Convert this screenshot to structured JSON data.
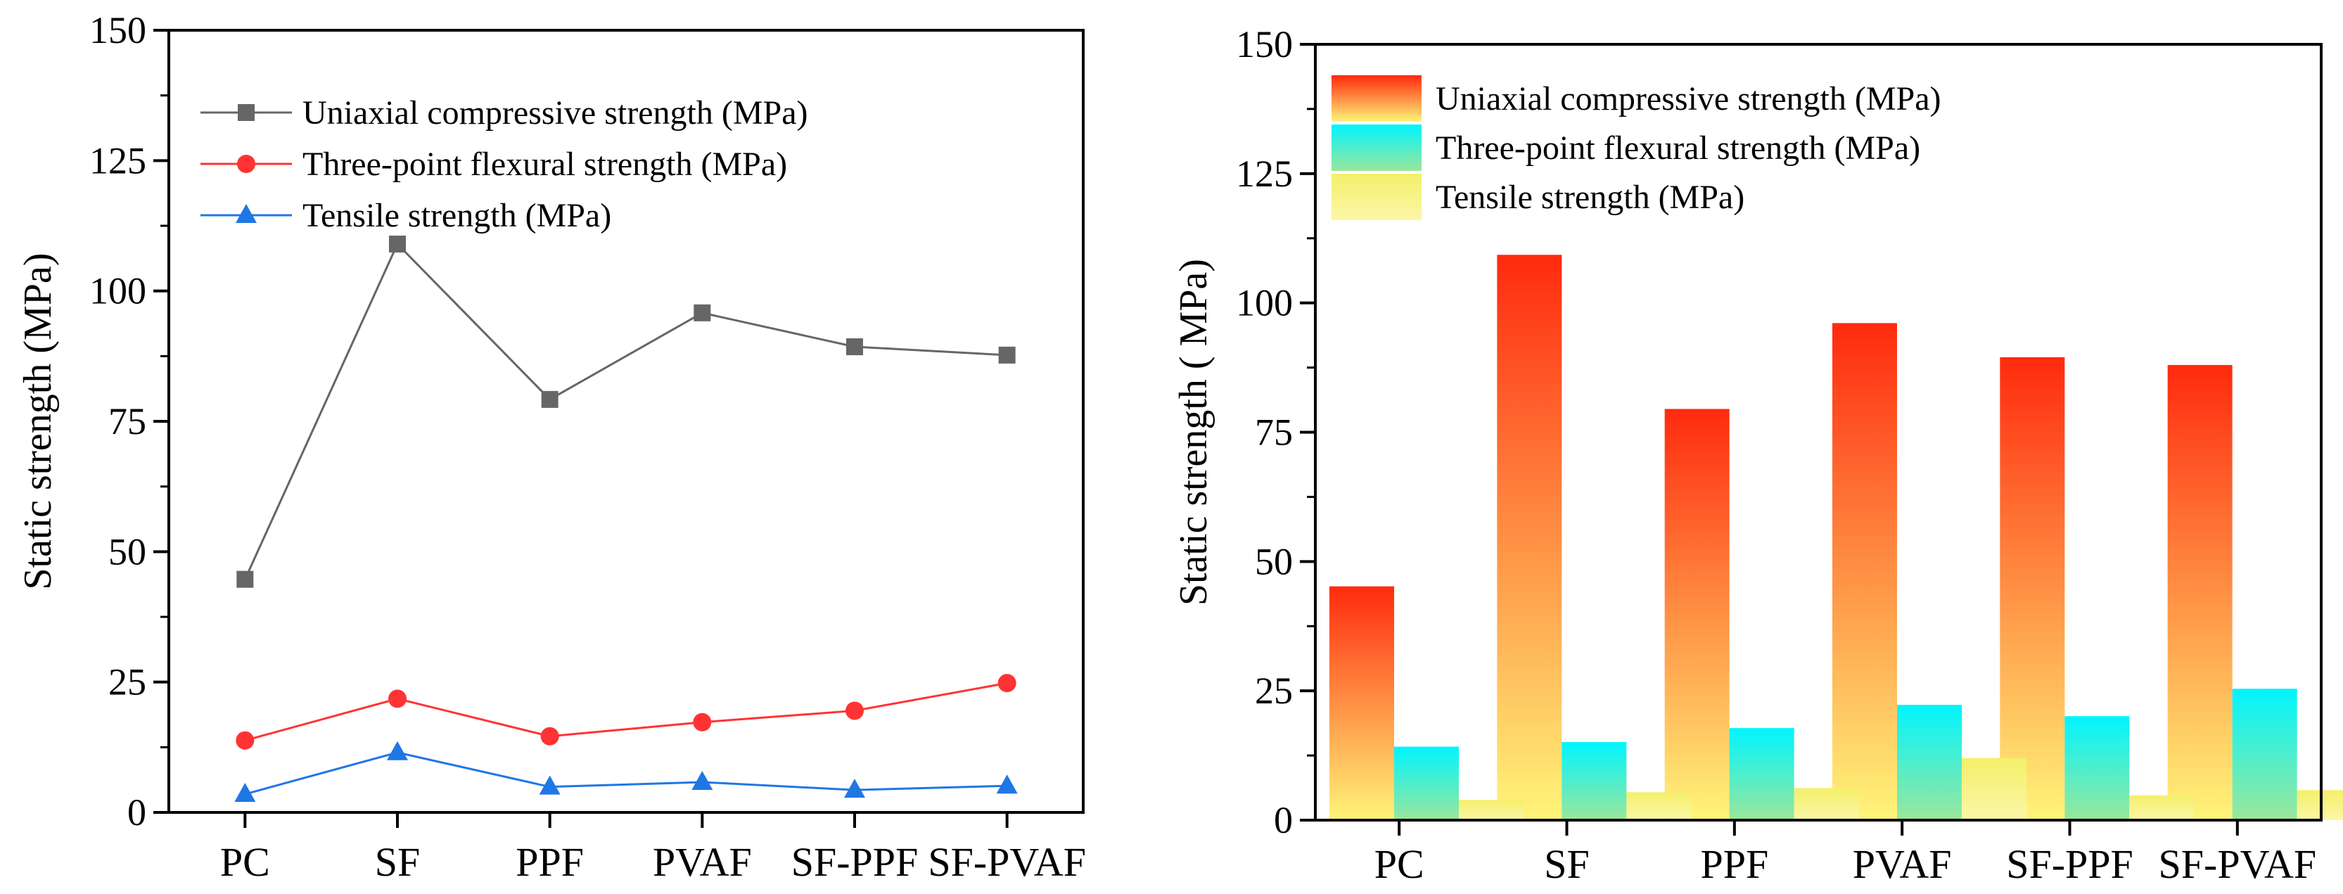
{
  "chart_data": [
    {
      "type": "line",
      "ylabel": "Static strength (MPa)",
      "xlabel": "",
      "categories": [
        "PC",
        "SF",
        "PPF",
        "PVAF",
        "SF-PPF",
        "SF-PVAF"
      ],
      "ylim": [
        0,
        150
      ],
      "yticks": [
        "0",
        "25",
        "50",
        "75",
        "100",
        "125",
        "150"
      ],
      "legend_position": "top-left",
      "series": [
        {
          "name": "Uniaxial compressive strength (MPa)",
          "marker": "square",
          "color": "#666666",
          "values": [
            44.7,
            109.0,
            79.2,
            95.8,
            89.3,
            87.7
          ]
        },
        {
          "name": "Three-point flexural strength (MPa)",
          "marker": "circle",
          "color": "#ff3333",
          "values": [
            13.8,
            21.8,
            14.6,
            17.3,
            19.5,
            24.8
          ]
        },
        {
          "name": "Tensile strength (MPa)",
          "marker": "triangle",
          "color": "#1f77e6",
          "values": [
            3.5,
            11.5,
            4.9,
            5.8,
            4.3,
            5.1
          ]
        }
      ]
    },
    {
      "type": "bar",
      "ylabel": "Static strength ( MPa)",
      "xlabel": "",
      "categories": [
        "PC",
        "SF",
        "PPF",
        "PVAF",
        "SF-PPF",
        "SF-PVAF"
      ],
      "ylim": [
        0,
        150
      ],
      "yticks": [
        "0",
        "25",
        "50",
        "75",
        "100",
        "125",
        "150"
      ],
      "legend_position": "top-left",
      "series": [
        {
          "name": "Uniaxial compressive strength (MPa)",
          "color_top": "#ff2a0e",
          "color_bottom": "#fff57a",
          "values": [
            45.2,
            109.3,
            79.5,
            96.1,
            89.5,
            88.0
          ]
        },
        {
          "name": "Three-point flexural strength (MPa)",
          "color_top": "#00f5ff",
          "color_bottom": "#9be79a",
          "values": [
            14.2,
            15.1,
            17.8,
            22.3,
            20.1,
            25.4
          ]
        },
        {
          "name": "Tensile strength (MPa)",
          "color_top": "#f5ef6a",
          "color_bottom": "#fbf7a8",
          "values": [
            3.9,
            5.4,
            6.2,
            12.0,
            4.8,
            5.8
          ]
        }
      ]
    }
  ]
}
